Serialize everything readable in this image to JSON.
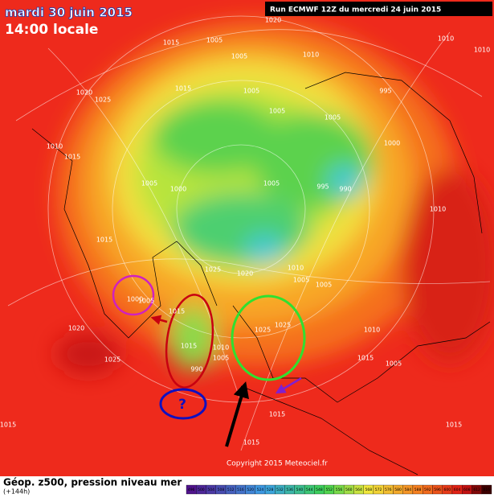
{
  "header": {
    "date": "mardi 30 juin 2015",
    "time": "14:00 locale",
    "run": "Run ECMWF 12Z du mercredi 24 juin 2015"
  },
  "footer": {
    "title": "Géop. z500, pression niveau mer",
    "range": "(+144h)",
    "copyright": "Copyright 2015 Meteociel.fr"
  },
  "annotation": "?",
  "isobar_labels": [
    "1020",
    "1015",
    "1005",
    "1005",
    "1010",
    "1010",
    "1010",
    "1020",
    "1025",
    "1010",
    "1015",
    "1015",
    "1005",
    "1005",
    "995",
    "1005",
    "1000",
    "1005",
    "995",
    "990",
    "1005",
    "1010",
    "1015",
    "1025",
    "1020",
    "1010",
    "1005",
    "1005",
    "1000",
    "1005",
    "1015",
    "1025",
    "1025",
    "1010",
    "1020",
    "1025",
    "1005",
    "1015",
    "1015",
    "1015",
    "1015",
    "1015",
    "1005",
    "1015",
    "990",
    "1010",
    "1000"
  ],
  "legend": [
    496,
    500,
    504,
    508,
    512,
    516,
    520,
    524,
    528,
    532,
    536,
    540,
    544,
    548,
    552,
    556,
    560,
    564,
    568,
    572,
    576,
    580,
    584,
    588,
    592,
    596,
    600,
    604,
    608,
    612,
    616
  ]
}
